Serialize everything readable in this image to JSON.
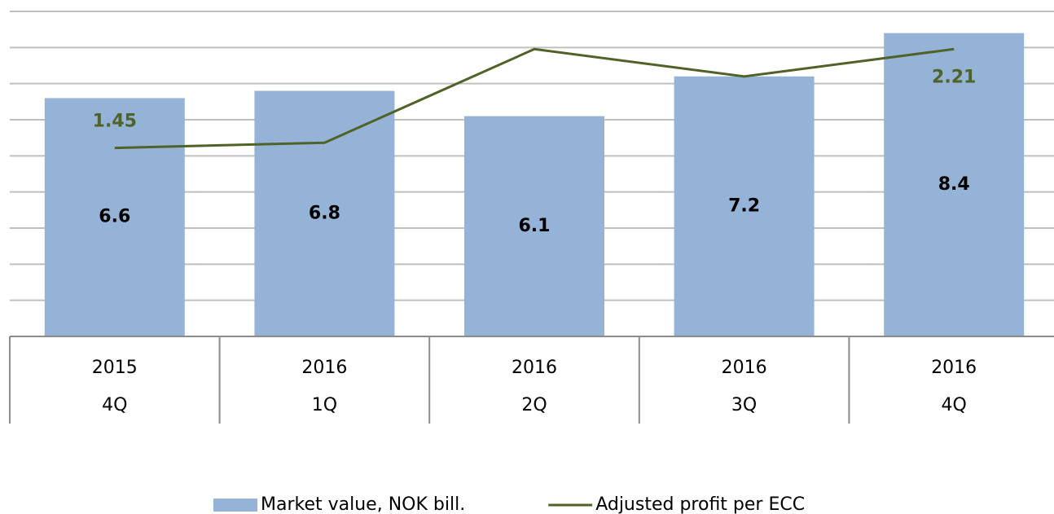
{
  "chart_data": {
    "type": "bar-line",
    "categories": [
      [
        "2015",
        "4Q"
      ],
      [
        "2016",
        "1Q"
      ],
      [
        "2016",
        "2Q"
      ],
      [
        "2016",
        "3Q"
      ],
      [
        "2016",
        "4Q"
      ]
    ],
    "series": [
      {
        "name": "Market value, NOK bill.",
        "type": "bar",
        "color": "#95b3d7",
        "values": [
          6.6,
          6.8,
          6.1,
          7.2,
          8.4
        ]
      },
      {
        "name": "Adjusted profit per ECC",
        "type": "line",
        "axis": "y2",
        "color": "#4f6228",
        "values": [
          1.45,
          1.49,
          2.21,
          2.0,
          2.21
        ],
        "value_labels": [
          "1.45",
          null,
          null,
          null,
          "2.21"
        ]
      }
    ],
    "ylim": [
      0,
      9
    ],
    "yticks": [
      0,
      1,
      2,
      3,
      4,
      5,
      6,
      7,
      8,
      9
    ],
    "y2lim": [
      0,
      2.5
    ],
    "grid": true,
    "legend": "bottom"
  }
}
